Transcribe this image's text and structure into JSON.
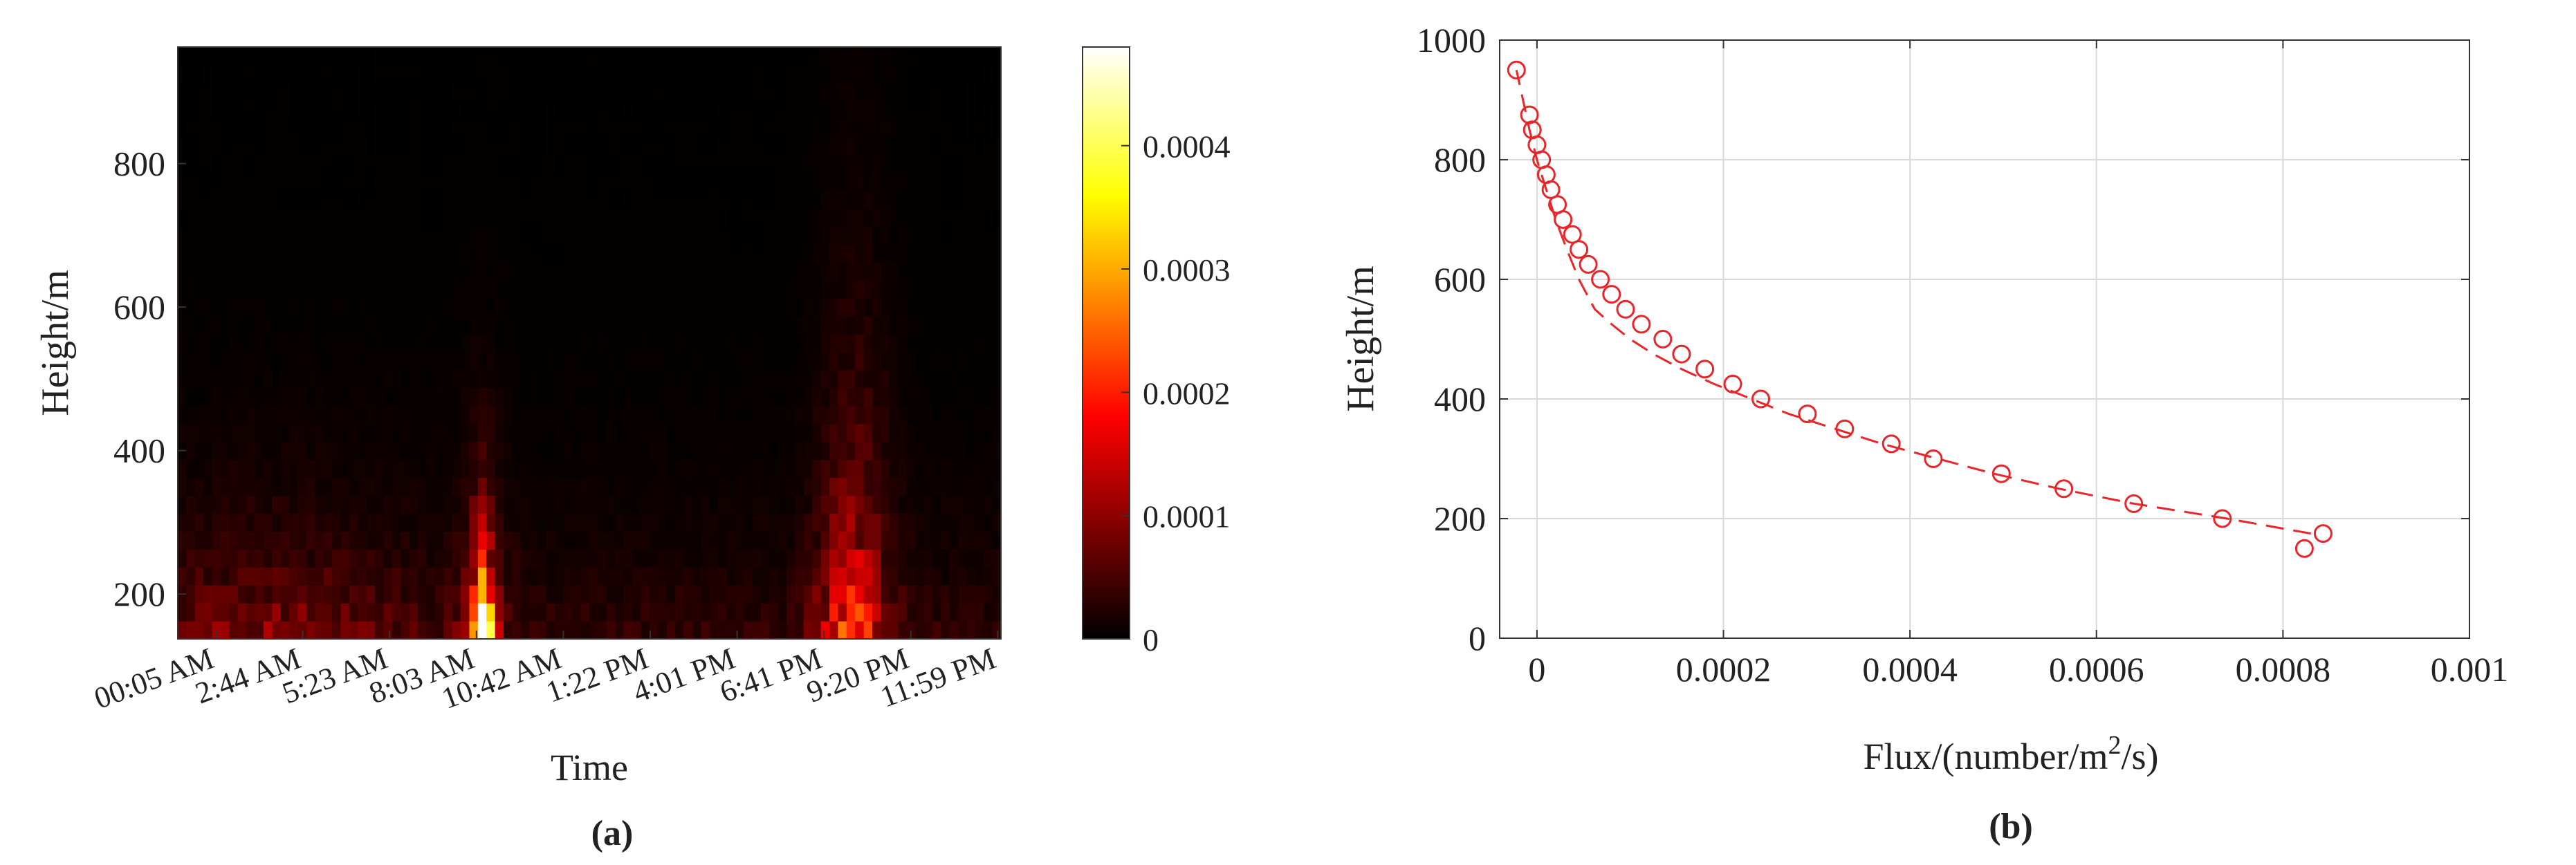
{
  "chart_data": [
    {
      "type": "heatmap",
      "panel_label": "(a)",
      "title": "",
      "xlabel": "Time",
      "ylabel": "Height/m",
      "x_tick_labels": [
        "00:05 AM",
        "2:44 AM",
        "5:23 AM",
        "8:03 AM",
        "10:42 AM",
        "1:22 PM",
        "4:01 PM",
        "6:41 PM",
        "9:20 PM",
        "11:59 PM"
      ],
      "y_ticks": [
        200,
        400,
        600,
        800
      ],
      "ylim": [
        137.5,
        962.5
      ],
      "colorbar": {
        "colormap": "hot",
        "range": [
          0,
          0.00048
        ],
        "ticks": [
          0,
          0.0001,
          0.0002,
          0.0003,
          0.0004
        ],
        "tick_labels": [
          "0",
          "0.0001",
          "0.0002",
          "0.0003",
          "0.0004"
        ]
      },
      "time_bins": 96,
      "height_levels": [
        150,
        175,
        200,
        225,
        250,
        275,
        300,
        325,
        350,
        375,
        400,
        425,
        450,
        475,
        500,
        525,
        550,
        575,
        600,
        625,
        650,
        675,
        700,
        725,
        750,
        775,
        800,
        825,
        850,
        875,
        900,
        925,
        950
      ],
      "features": [
        {
          "center_time_bin": 35,
          "peak_value": 0.00048,
          "top_height": 450,
          "description": "bright morning peak near 8 AM at low altitude"
        },
        {
          "center_time_bin": 78,
          "peak_value": 0.00017,
          "top_height": 750,
          "description": "evening plume around 8-9 PM"
        },
        {
          "center_time_bin": 10,
          "peak_value": 9e-05,
          "top_height": 500,
          "description": "early morning low-level activity"
        }
      ]
    },
    {
      "type": "line",
      "panel_label": "(b)",
      "title": "",
      "xlabel": "Flux/(number/m",
      "xlabel_sup": "2",
      "xlabel_tail": "/s)",
      "ylabel": "Height/m",
      "xlim": [
        -4e-05,
        0.001
      ],
      "ylim": [
        0,
        1000
      ],
      "x_ticks": [
        0,
        0.0002,
        0.0004,
        0.0006,
        0.0008,
        0.001
      ],
      "x_tick_labels": [
        "0",
        "0.0002",
        "0.0004",
        "0.0006",
        "0.0008",
        "0.001"
      ],
      "y_ticks": [
        0,
        200,
        400,
        600,
        800,
        1000
      ],
      "y_tick_labels": [
        "0",
        "200",
        "400",
        "600",
        "800",
        "1000"
      ],
      "grid": true,
      "series": [
        {
          "style": "markers",
          "marker": "open-circle",
          "color": "#e8262a",
          "x": [
            0.000823,
            0.000843,
            0.000735,
            0.00064,
            0.000565,
            0.000498,
            0.000425,
            0.00038,
            0.00033,
            0.00029,
            0.00024,
            0.00021,
            0.00018,
            0.000155,
            0.000135,
            0.000112,
            9.5e-05,
            8e-05,
            6.8e-05,
            5.5e-05,
            4.5e-05,
            3.8e-05,
            2.8e-05,
            2.2e-05,
            1.5e-05,
            1e-05,
            5e-06,
            0.0,
            -5e-06,
            -8e-06,
            -2.2e-05
          ],
          "y": [
            150,
            175,
            200,
            225,
            250,
            275,
            300,
            325,
            350,
            375,
            400,
            425,
            450,
            475,
            500,
            525,
            550,
            575,
            600,
            625,
            650,
            675,
            700,
            725,
            750,
            775,
            800,
            825,
            850,
            875,
            950
          ]
        },
        {
          "style": "dashed-fit",
          "color": "#e8262a",
          "x": [
            0.00083,
            0.00074,
            0.00064,
            0.00056,
            0.00049,
            0.00043,
            0.00037,
            0.00032,
            0.00027,
            0.00023,
            0.00019,
            0.000155,
            0.000125,
            0.0001,
            8e-05,
            6.2e-05,
            4.5e-05,
            3.2e-05,
            2e-05,
            1e-05,
            0.0,
            -8e-06,
            -1.5e-05,
            -2.2e-05
          ],
          "y": [
            175,
            200,
            225,
            250,
            275,
            300,
            325,
            350,
            375,
            400,
            425,
            450,
            475,
            500,
            525,
            550,
            600,
            650,
            700,
            750,
            800,
            850,
            900,
            950
          ]
        }
      ]
    }
  ]
}
